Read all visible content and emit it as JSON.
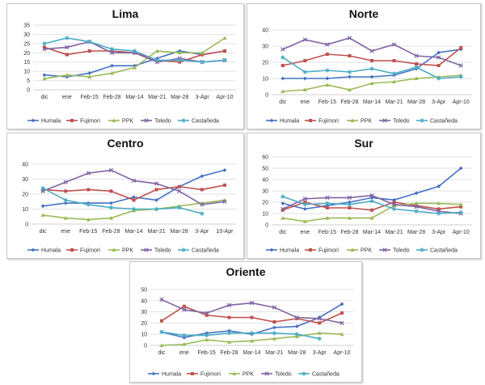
{
  "chart_data": [
    {
      "type": "line",
      "title": "Lima",
      "categories": [
        "dic",
        "ene",
        "Feb-15",
        "Feb-28",
        "Mar-14",
        "Mar-21",
        "Mar-28",
        "3-Apr",
        "Apr-10"
      ],
      "ylim": [
        0,
        35
      ],
      "yticks": [
        0,
        5,
        10,
        15,
        20,
        25,
        30,
        35
      ],
      "grid": true,
      "legend": "bottom",
      "series": [
        {
          "name": "Humala",
          "color": "#4472c4",
          "marker": "diamond",
          "values": [
            8,
            7,
            9,
            13,
            13,
            17,
            21,
            19,
            21
          ]
        },
        {
          "name": "Fujimori",
          "color": "#c0504d",
          "marker": "square",
          "values": [
            23,
            19,
            21,
            21,
            20,
            16,
            15,
            19,
            21
          ]
        },
        {
          "name": "PPK",
          "color": "#9bbb59",
          "marker": "triangle",
          "values": [
            6,
            8,
            7,
            9,
            12,
            21,
            20,
            20,
            28
          ]
        },
        {
          "name": "Toledo",
          "color": "#8064a2",
          "marker": "x",
          "values": [
            22,
            23,
            26,
            20,
            20,
            15,
            17,
            15,
            16
          ]
        },
        {
          "name": "Castañeda",
          "color": "#4bacc6",
          "marker": "star",
          "values": [
            25,
            28,
            26,
            22,
            21,
            16,
            16,
            15,
            16
          ]
        }
      ]
    },
    {
      "type": "line",
      "title": "Norte",
      "categories": [
        "dic",
        "ene",
        "Feb-15",
        "Feb-28",
        "Mar-14",
        "Mar-21",
        "Mar-28",
        "3-Apr",
        "Apr-10"
      ],
      "ylim": [
        0,
        40
      ],
      "yticks": [
        0,
        10,
        20,
        30,
        40
      ],
      "grid": true,
      "legend": "bottom",
      "series": [
        {
          "name": "Humala",
          "color": "#4472c4",
          "marker": "diamond",
          "values": [
            10,
            10,
            10,
            11,
            11,
            12,
            16,
            26,
            28
          ]
        },
        {
          "name": "Fujimori",
          "color": "#c0504d",
          "marker": "square",
          "values": [
            18,
            21,
            25,
            24,
            21,
            21,
            19,
            18,
            29
          ]
        },
        {
          "name": "PPK",
          "color": "#9bbb59",
          "marker": "triangle",
          "values": [
            2,
            3,
            6,
            3,
            7,
            8,
            10,
            11,
            12
          ]
        },
        {
          "name": "Toledo",
          "color": "#8064a2",
          "marker": "x",
          "values": [
            28,
            34,
            31,
            35,
            27,
            31,
            24,
            23,
            18
          ]
        },
        {
          "name": "Castañeda",
          "color": "#4bacc6",
          "marker": "star",
          "values": [
            23,
            14,
            15,
            14,
            16,
            13,
            17,
            10,
            11
          ]
        }
      ]
    },
    {
      "type": "line",
      "title": "Centro",
      "categories": [
        "dic",
        "ene",
        "Feb-15",
        "Feb-28",
        "Mar-14",
        "Mar-21",
        "Mar-28",
        "3-Apr",
        "10-Apr"
      ],
      "ylim": [
        0,
        40
      ],
      "yticks": [
        0,
        10,
        20,
        30,
        40
      ],
      "grid": true,
      "legend": "bottom",
      "series": [
        {
          "name": "Humala",
          "color": "#4472c4",
          "marker": "diamond",
          "values": [
            12,
            14,
            14,
            14,
            18,
            16,
            25,
            32,
            36
          ]
        },
        {
          "name": "Fujimori",
          "color": "#c0504d",
          "marker": "square",
          "values": [
            23,
            22,
            23,
            22,
            16,
            23,
            25,
            23,
            26
          ]
        },
        {
          "name": "PPK",
          "color": "#9bbb59",
          "marker": "triangle",
          "values": [
            6,
            4,
            3,
            4,
            9,
            10,
            12,
            14,
            16
          ]
        },
        {
          "name": "Toledo",
          "color": "#8064a2",
          "marker": "x",
          "values": [
            22,
            28,
            34,
            36,
            29,
            27,
            22,
            13,
            15
          ]
        },
        {
          "name": "Castañeda",
          "color": "#4bacc6",
          "marker": "star",
          "values": [
            24,
            16,
            13,
            11,
            10,
            10,
            11,
            7,
            null
          ]
        }
      ]
    },
    {
      "type": "line",
      "title": "Sur",
      "categories": [
        "dic",
        "ene",
        "Feb-15",
        "Feb-28",
        "Mar-14",
        "Mar-21",
        "Mar-28",
        "3-Apr",
        "Apr-10"
      ],
      "ylim": [
        0,
        60
      ],
      "yticks": [
        0,
        10,
        20,
        30,
        40,
        50,
        60
      ],
      "grid": true,
      "legend": "bottom",
      "series": [
        {
          "name": "Humala",
          "color": "#4472c4",
          "marker": "diamond",
          "values": [
            19,
            14,
            17,
            20,
            24,
            22,
            28,
            34,
            50
          ]
        },
        {
          "name": "Fujimori",
          "color": "#c0504d",
          "marker": "square",
          "values": [
            13,
            20,
            15,
            15,
            13,
            20,
            17,
            14,
            16
          ]
        },
        {
          "name": "PPK",
          "color": "#9bbb59",
          "marker": "triangle",
          "values": [
            6,
            3,
            6,
            6,
            6,
            17,
            19,
            19,
            18
          ]
        },
        {
          "name": "Toledo",
          "color": "#8064a2",
          "marker": "x",
          "values": [
            14,
            23,
            24,
            24,
            26,
            18,
            16,
            12,
            10
          ]
        },
        {
          "name": "Castañeda",
          "color": "#4bacc6",
          "marker": "star",
          "values": [
            25,
            18,
            19,
            18,
            21,
            14,
            12,
            10,
            11
          ]
        }
      ]
    },
    {
      "type": "line",
      "title": "Oriente",
      "categories": [
        "dic",
        "ene",
        "Feb-15",
        "Feb-28",
        "Mar-14",
        "Mar-21",
        "Mar-28",
        "3-Apr",
        "Apr-10"
      ],
      "ylim": [
        0,
        50
      ],
      "yticks": [
        0,
        10,
        20,
        30,
        40,
        50
      ],
      "grid": true,
      "legend": "bottom",
      "series": [
        {
          "name": "Humala",
          "color": "#4472c4",
          "marker": "diamond",
          "values": [
            12,
            7,
            11,
            13,
            10,
            16,
            17,
            25,
            37
          ]
        },
        {
          "name": "Fujimori",
          "color": "#c0504d",
          "marker": "square",
          "values": [
            22,
            35,
            27,
            25,
            25,
            21,
            24,
            20,
            29
          ]
        },
        {
          "name": "PPK",
          "color": "#9bbb59",
          "marker": "triangle",
          "values": [
            0,
            1,
            5,
            3,
            4,
            6,
            8,
            11,
            10
          ]
        },
        {
          "name": "Toledo",
          "color": "#8064a2",
          "marker": "x",
          "values": [
            41,
            32,
            29,
            36,
            38,
            34,
            25,
            24,
            20
          ]
        },
        {
          "name": "Castañeda",
          "color": "#4bacc6",
          "marker": "star",
          "values": [
            12,
            9,
            9,
            11,
            11,
            11,
            10,
            6,
            null
          ]
        }
      ]
    }
  ]
}
